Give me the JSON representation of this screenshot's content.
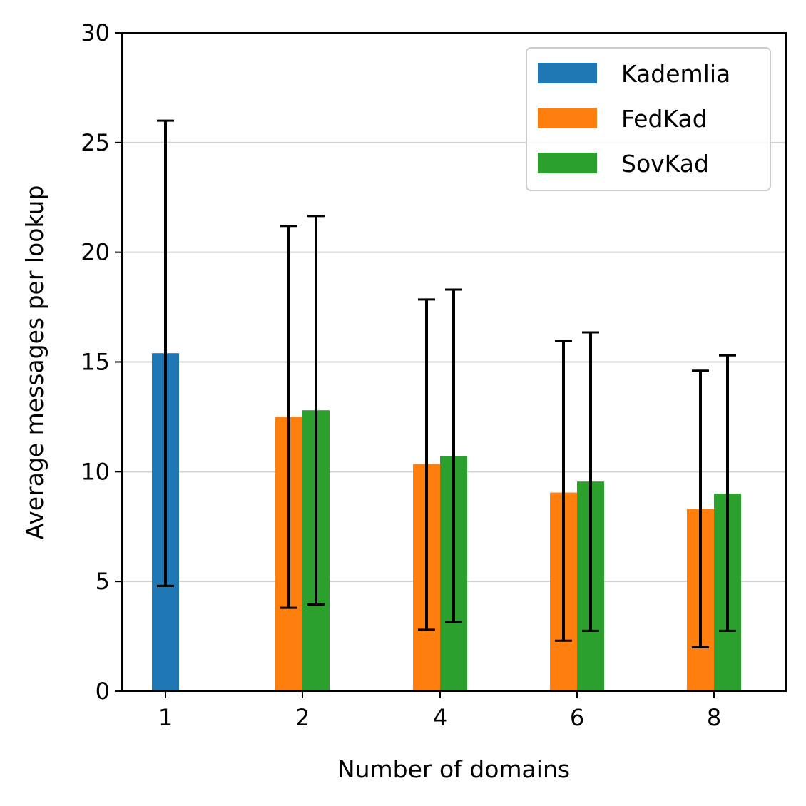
{
  "chart_data": {
    "type": "bar",
    "categories": [
      "1",
      "2",
      "4",
      "6",
      "8"
    ],
    "series": [
      {
        "name": "Kademlia",
        "color": "#1f77b4",
        "values": [
          15.4,
          null,
          null,
          null,
          null
        ],
        "err_low": [
          4.8,
          null,
          null,
          null,
          null
        ],
        "err_high": [
          26.0,
          null,
          null,
          null,
          null
        ]
      },
      {
        "name": "FedKad",
        "color": "#ff7f0e",
        "values": [
          null,
          12.5,
          10.35,
          9.05,
          8.3
        ],
        "err_low": [
          null,
          3.8,
          2.8,
          2.3,
          2.0
        ],
        "err_high": [
          null,
          21.2,
          17.85,
          15.95,
          14.6
        ]
      },
      {
        "name": "SovKad",
        "color": "#2ca02c",
        "values": [
          null,
          12.8,
          10.7,
          9.55,
          9.0
        ],
        "err_low": [
          null,
          3.95,
          3.15,
          2.75,
          2.75
        ],
        "err_high": [
          null,
          21.65,
          18.3,
          16.35,
          15.3
        ]
      }
    ],
    "xlabel": "Number of domains",
    "ylabel": "Average messages per lookup",
    "ylim": [
      0,
      30
    ],
    "yticks": [
      "0",
      "5",
      "10",
      "15",
      "20",
      "25",
      "30"
    ],
    "grid": "horizontal",
    "legend": "top-right"
  }
}
